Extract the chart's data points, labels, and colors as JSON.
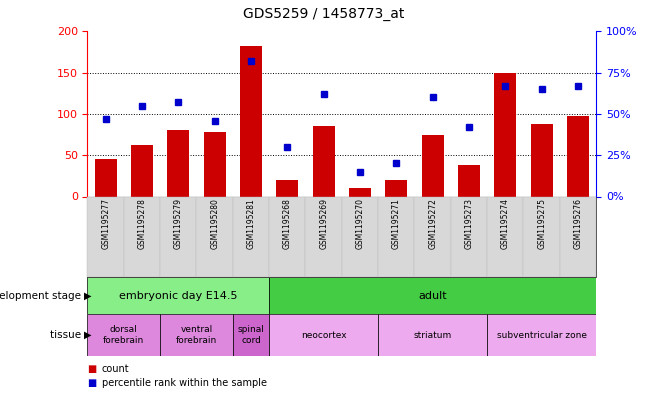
{
  "title": "GDS5259 / 1458773_at",
  "samples": [
    "GSM1195277",
    "GSM1195278",
    "GSM1195279",
    "GSM1195280",
    "GSM1195281",
    "GSM1195268",
    "GSM1195269",
    "GSM1195270",
    "GSM1195271",
    "GSM1195272",
    "GSM1195273",
    "GSM1195274",
    "GSM1195275",
    "GSM1195276"
  ],
  "counts": [
    45,
    62,
    80,
    78,
    182,
    20,
    85,
    10,
    20,
    75,
    38,
    150,
    88,
    97
  ],
  "percentiles": [
    47,
    55,
    57,
    46,
    82,
    30,
    62,
    15,
    20,
    60,
    42,
    67,
    65,
    67
  ],
  "ylim_left": [
    0,
    200
  ],
  "ylim_right": [
    0,
    100
  ],
  "yticks_left": [
    0,
    50,
    100,
    150,
    200
  ],
  "yticks_right": [
    0,
    25,
    50,
    75,
    100
  ],
  "ytick_labels_right": [
    "0%",
    "25%",
    "50%",
    "75%",
    "100%"
  ],
  "bar_color": "#cc0000",
  "dot_color": "#0000cc",
  "dev_stage_groups": [
    {
      "label": "embryonic day E14.5",
      "start": 0,
      "end": 5,
      "color": "#88ee88"
    },
    {
      "label": "adult",
      "start": 5,
      "end": 14,
      "color": "#44cc44"
    }
  ],
  "tissue_groups": [
    {
      "label": "dorsal\nforebrain",
      "start": 0,
      "end": 2,
      "color": "#dd88dd"
    },
    {
      "label": "ventral\nforebrain",
      "start": 2,
      "end": 4,
      "color": "#dd88dd"
    },
    {
      "label": "spinal\ncord",
      "start": 4,
      "end": 5,
      "color": "#cc66cc"
    },
    {
      "label": "neocortex",
      "start": 5,
      "end": 8,
      "color": "#eeaaee"
    },
    {
      "label": "striatum",
      "start": 8,
      "end": 11,
      "color": "#eeaaee"
    },
    {
      "label": "subventricular zone",
      "start": 11,
      "end": 14,
      "color": "#eeaaee"
    }
  ],
  "dev_stage_row_label": "development stage",
  "tissue_row_label": "tissue",
  "legend_count": "count",
  "legend_percentile": "percentile rank within the sample"
}
